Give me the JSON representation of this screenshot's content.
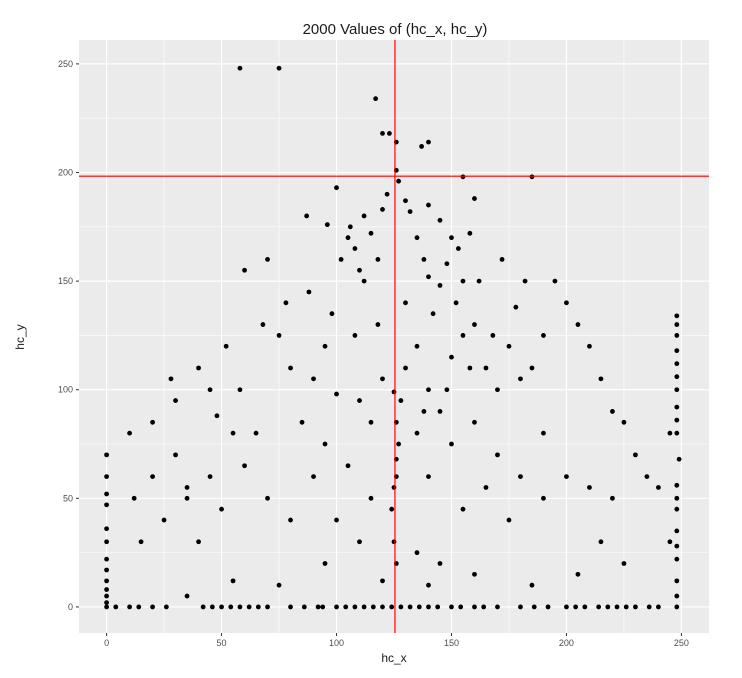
{
  "chart_data": {
    "type": "scatter",
    "title": "2000 Values of (hc_x, hc_y)",
    "xlabel": "hc_x",
    "ylabel": "hc_y",
    "xlim": [
      -12,
      262
    ],
    "ylim": [
      -12,
      261
    ],
    "x_ticks": [
      0,
      50,
      100,
      150,
      200,
      250
    ],
    "y_ticks": [
      0,
      50,
      100,
      150,
      200,
      250
    ],
    "grid": true,
    "point_color": "#000000",
    "panel_background": "#ebebeb",
    "grid_color": "#ffffff",
    "reference_lines": [
      {
        "orientation": "vertical",
        "value": 125.4,
        "color": "#ff0000"
      },
      {
        "orientation": "horizontal",
        "value": 198.3,
        "color": "#ff0000"
      }
    ],
    "points_sampled": [
      [
        58,
        248
      ],
      [
        75,
        248
      ],
      [
        117,
        234
      ],
      [
        120,
        218
      ],
      [
        123,
        218
      ],
      [
        126,
        214
      ],
      [
        140,
        214
      ],
      [
        137,
        212
      ],
      [
        185,
        198
      ],
      [
        155,
        198
      ],
      [
        100,
        193
      ],
      [
        126,
        201
      ],
      [
        127,
        196
      ],
      [
        122,
        190
      ],
      [
        130,
        187
      ],
      [
        120,
        183
      ],
      [
        112,
        180
      ],
      [
        132,
        182
      ],
      [
        140,
        185
      ],
      [
        145,
        178
      ],
      [
        160,
        188
      ],
      [
        105,
        170
      ],
      [
        108,
        165
      ],
      [
        102,
        160
      ],
      [
        110,
        155
      ],
      [
        115,
        172
      ],
      [
        118,
        160
      ],
      [
        106,
        175
      ],
      [
        112,
        150
      ],
      [
        150,
        170
      ],
      [
        153,
        165
      ],
      [
        148,
        158
      ],
      [
        140,
        152
      ],
      [
        145,
        148
      ],
      [
        138,
        160
      ],
      [
        155,
        150
      ],
      [
        158,
        172
      ],
      [
        135,
        170
      ],
      [
        96,
        176
      ],
      [
        87,
        180
      ],
      [
        70,
        160
      ],
      [
        60,
        155
      ],
      [
        52,
        120
      ],
      [
        45,
        100
      ],
      [
        30,
        95
      ],
      [
        20,
        85
      ],
      [
        10,
        80
      ],
      [
        75,
        125
      ],
      [
        80,
        110
      ],
      [
        90,
        105
      ],
      [
        95,
        120
      ],
      [
        100,
        98
      ],
      [
        110,
        95
      ],
      [
        115,
        85
      ],
      [
        120,
        105
      ],
      [
        125,
        99
      ],
      [
        128,
        95
      ],
      [
        126,
        85
      ],
      [
        127,
        75
      ],
      [
        126,
        68
      ],
      [
        126,
        60
      ],
      [
        125,
        55
      ],
      [
        124,
        45
      ],
      [
        125,
        30
      ],
      [
        126,
        20
      ],
      [
        130,
        110
      ],
      [
        135,
        120
      ],
      [
        140,
        100
      ],
      [
        145,
        90
      ],
      [
        150,
        115
      ],
      [
        155,
        125
      ],
      [
        160,
        130
      ],
      [
        165,
        110
      ],
      [
        170,
        100
      ],
      [
        175,
        120
      ],
      [
        180,
        105
      ],
      [
        185,
        110
      ],
      [
        190,
        125
      ],
      [
        195,
        150
      ],
      [
        200,
        140
      ],
      [
        205,
        130
      ],
      [
        210,
        120
      ],
      [
        215,
        105
      ],
      [
        220,
        90
      ],
      [
        225,
        85
      ],
      [
        230,
        70
      ],
      [
        235,
        60
      ],
      [
        240,
        55
      ],
      [
        245,
        80
      ],
      [
        245,
        30
      ],
      [
        220,
        50
      ],
      [
        200,
        60
      ],
      [
        190,
        80
      ],
      [
        175,
        40
      ],
      [
        165,
        55
      ],
      [
        155,
        45
      ],
      [
        145,
        20
      ],
      [
        135,
        25
      ],
      [
        110,
        30
      ],
      [
        100,
        40
      ],
      [
        90,
        60
      ],
      [
        80,
        40
      ],
      [
        70,
        50
      ],
      [
        60,
        65
      ],
      [
        50,
        45
      ],
      [
        40,
        30
      ],
      [
        35,
        50
      ],
      [
        25,
        40
      ],
      [
        15,
        30
      ],
      [
        65,
        80
      ],
      [
        85,
        85
      ],
      [
        95,
        75
      ],
      [
        105,
        65
      ],
      [
        115,
        50
      ],
      [
        135,
        80
      ],
      [
        140,
        60
      ],
      [
        150,
        75
      ],
      [
        160,
        85
      ],
      [
        170,
        70
      ],
      [
        180,
        60
      ],
      [
        190,
        50
      ],
      [
        210,
        55
      ],
      [
        215,
        30
      ],
      [
        225,
        20
      ],
      [
        205,
        15
      ],
      [
        185,
        10
      ],
      [
        160,
        15
      ],
      [
        140,
        10
      ],
      [
        120,
        12
      ],
      [
        95,
        20
      ],
      [
        75,
        10
      ],
      [
        55,
        12
      ],
      [
        35,
        5
      ],
      [
        45,
        60
      ],
      [
        55,
        80
      ],
      [
        40,
        110
      ],
      [
        30,
        70
      ],
      [
        20,
        60
      ],
      [
        12,
        50
      ],
      [
        28,
        105
      ],
      [
        35,
        55
      ],
      [
        48,
        88
      ],
      [
        58,
        100
      ],
      [
        68,
        130
      ],
      [
        78,
        140
      ],
      [
        88,
        145
      ],
      [
        98,
        135
      ],
      [
        108,
        125
      ],
      [
        118,
        130
      ],
      [
        130,
        140
      ],
      [
        142,
        135
      ],
      [
        152,
        140
      ],
      [
        162,
        150
      ],
      [
        172,
        160
      ],
      [
        182,
        150
      ],
      [
        178,
        138
      ],
      [
        168,
        125
      ],
      [
        158,
        110
      ],
      [
        148,
        100
      ],
      [
        138,
        90
      ],
      [
        0,
        70
      ],
      [
        0,
        60
      ],
      [
        0,
        52
      ],
      [
        0,
        47
      ],
      [
        0,
        36
      ],
      [
        0,
        30
      ],
      [
        0,
        22
      ],
      [
        0,
        17
      ],
      [
        0,
        12
      ],
      [
        0,
        8
      ],
      [
        0,
        5
      ],
      [
        0,
        2
      ],
      [
        248,
        134
      ],
      [
        248,
        130
      ],
      [
        248,
        125
      ],
      [
        248,
        118
      ],
      [
        248,
        112
      ],
      [
        248,
        106
      ],
      [
        248,
        100
      ],
      [
        248,
        92
      ],
      [
        248,
        86
      ],
      [
        248,
        80
      ],
      [
        249,
        68
      ],
      [
        248,
        56
      ],
      [
        248,
        50
      ],
      [
        248,
        45
      ],
      [
        248,
        35
      ],
      [
        248,
        28
      ],
      [
        248,
        22
      ],
      [
        248,
        12
      ],
      [
        248,
        5
      ],
      [
        248,
        0
      ],
      [
        0,
        0
      ],
      [
        4,
        0
      ],
      [
        10,
        0
      ],
      [
        14,
        0
      ],
      [
        20,
        0
      ],
      [
        26,
        0
      ],
      [
        42,
        0
      ],
      [
        46,
        0
      ],
      [
        50,
        0
      ],
      [
        54,
        0
      ],
      [
        58,
        0
      ],
      [
        62,
        0
      ],
      [
        66,
        0
      ],
      [
        70,
        0
      ],
      [
        80,
        0
      ],
      [
        86,
        0
      ],
      [
        92,
        0
      ],
      [
        94,
        0
      ],
      [
        100,
        0
      ],
      [
        104,
        0
      ],
      [
        108,
        0
      ],
      [
        112,
        0
      ],
      [
        116,
        0
      ],
      [
        120,
        0
      ],
      [
        124,
        0
      ],
      [
        128,
        0
      ],
      [
        132,
        0
      ],
      [
        136,
        0
      ],
      [
        140,
        0
      ],
      [
        144,
        0
      ],
      [
        150,
        0
      ],
      [
        154,
        0
      ],
      [
        160,
        0
      ],
      [
        164,
        0
      ],
      [
        170,
        0
      ],
      [
        180,
        0
      ],
      [
        186,
        0
      ],
      [
        192,
        0
      ],
      [
        200,
        0
      ],
      [
        204,
        0
      ],
      [
        208,
        0
      ],
      [
        214,
        0
      ],
      [
        218,
        0
      ],
      [
        222,
        0
      ],
      [
        226,
        0
      ],
      [
        230,
        0
      ],
      [
        236,
        0
      ],
      [
        240,
        0
      ]
    ]
  }
}
